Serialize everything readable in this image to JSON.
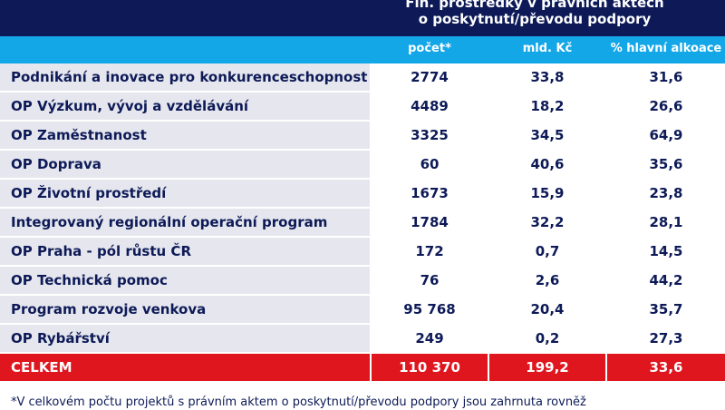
{
  "header": {
    "title_line1": "Fin. prostředky v právních aktech",
    "title_line2": "o poskytnutí/převodu podpory"
  },
  "colors": {
    "header_bg": "#0d1a57",
    "subheader_bg": "#14a7e8",
    "row_label_bg": "#e6e7ee",
    "total_bg": "#e0161f",
    "text": "#0d1a57"
  },
  "chart_data": {
    "type": "table",
    "columns": [
      "",
      "počet*",
      "mld. Kč",
      "% hlavní alkoace"
    ],
    "rows": [
      {
        "label": "Podnikání a inovace pro konkurenceschopnost",
        "pocet": "2774",
        "mld": "33,8",
        "pct": "31,6"
      },
      {
        "label": "OP Výzkum, vývoj a vzdělávání",
        "pocet": "4489",
        "mld": "18,2",
        "pct": "26,6"
      },
      {
        "label": "OP Zaměstnanost",
        "pocet": "3325",
        "mld": "34,5",
        "pct": "64,9"
      },
      {
        "label": "OP Doprava",
        "pocet": "60",
        "mld": "40,6",
        "pct": "35,6"
      },
      {
        "label": "OP Životní prostředí",
        "pocet": "1673",
        "mld": "15,9",
        "pct": "23,8"
      },
      {
        "label": "Integrovaný regionální operační program",
        "pocet": "1784",
        "mld": "32,2",
        "pct": "28,1"
      },
      {
        "label": "OP Praha - pól růstu ČR",
        "pocet": "172",
        "mld": "0,7",
        "pct": "14,5"
      },
      {
        "label": "OP Technická pomoc",
        "pocet": "76",
        "mld": "2,6",
        "pct": "44,2"
      },
      {
        "label": "Program rozvoje venkova",
        "pocet": "95 768",
        "mld": "20,4",
        "pct": "35,7"
      },
      {
        "label": "OP Rybářství",
        "pocet": "249",
        "mld": "0,2",
        "pct": "27,3"
      }
    ],
    "total": {
      "label": "CELKEM",
      "pocet": "110 370",
      "mld": "199,2",
      "pct": "33,6"
    }
  },
  "footnote": "*V celkovém počtu projektů s právním aktem o poskytnutí/převodu podpory jsou zahrnuta rovněž"
}
